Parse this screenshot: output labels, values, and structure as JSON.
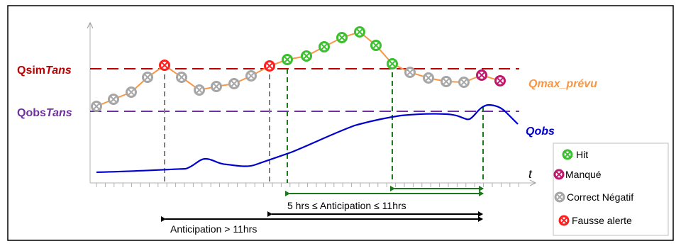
{
  "labels": {
    "qsim_prefix": "Qsim",
    "qsim_suffix": "Tans",
    "qobs_prefix": "Qobs",
    "qobs_suffix": "Tans",
    "qmax_prevu": "Qmax_prévu",
    "qobs": "Qobs",
    "t_axis": "t",
    "window_5_11": "5 hrs ≤ Anticipation ≤ 11hrs",
    "window_gt_11": "Anticipation > 11hrs"
  },
  "legend": {
    "hit": "Hit",
    "manque": "Manqué",
    "correct_negatif": "Correct Négatif",
    "fausse_alerte": "Fausse alerte"
  },
  "colors": {
    "border": "#000000",
    "axis": "#b0b0b0",
    "qsim_line": "#c00000",
    "qobs_line": "#7030a0",
    "forecast_line": "#f79646",
    "observed_line": "#0000cc",
    "hit": "#3bbf2e",
    "manque": "#c0166c",
    "correct_negatif": "#a6a6a6",
    "fausse_alerte": "#ff1e1e",
    "window_green": "#1a7a1a",
    "window_black": "#000000",
    "label_orange": "#f79646",
    "label_blue": "#0000cc",
    "label_red": "#c00000",
    "label_purple": "#7030a0"
  }
}
